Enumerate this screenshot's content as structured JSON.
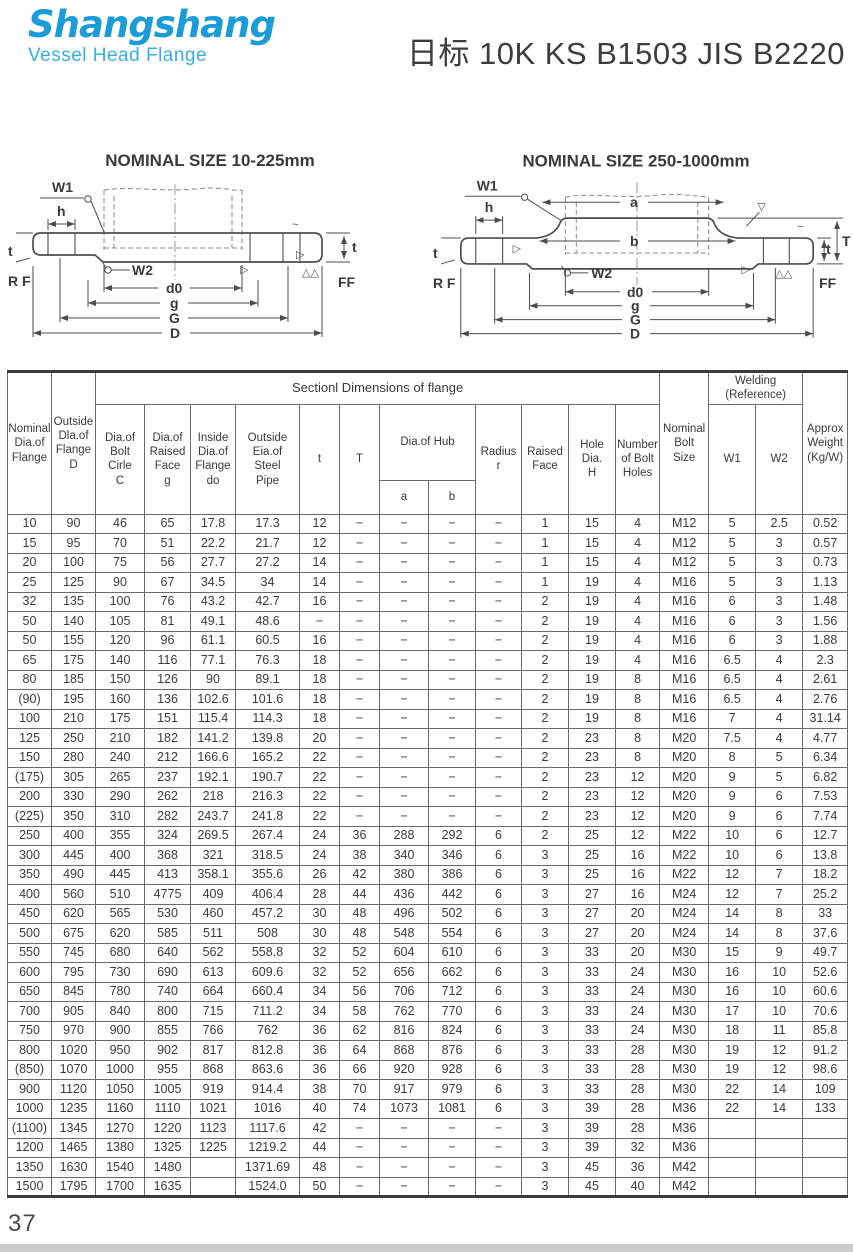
{
  "header": {
    "logo_title": "Shangshang",
    "logo_subtitle": "Vessel Head Flange",
    "page_title": "日标 10K KS B1503 JIS B2220"
  },
  "diagrams": {
    "left": {
      "title": "NOMINAL SIZE 10-225mm",
      "labels": {
        "w1": "W1",
        "h": "h",
        "t_left": "t",
        "rf": "R F",
        "w2": "W2",
        "d0": "d0",
        "g": "g",
        "G": "G",
        "D": "D",
        "ff": "FF",
        "t_right": "t",
        "tilde": "~",
        "tri_right": "▷",
        "tri_double": "△△"
      }
    },
    "right": {
      "title": "NOMINAL SIZE 250-1000mm",
      "labels": {
        "w1": "W1",
        "h": "h",
        "t_left": "t",
        "rf": "R F",
        "w2": "W2",
        "a": "a",
        "b": "b",
        "d0": "d0",
        "g": "g",
        "G": "G",
        "D": "D",
        "ff": "FF",
        "t_right": "t",
        "T": "T",
        "tilde": "~",
        "tri_left": "▷",
        "tri_right": "▷",
        "tri_down": "▽",
        "tri_double": "△△"
      }
    }
  },
  "table": {
    "headers": {
      "nominal_dia": "Nominal\nDia.of\nFlange",
      "outside_dia": "Outside\nDla.of\nFlange\nD",
      "section": "Sectionl Dimensions of flange",
      "bolt_circle": "Dia.of\nBolt\nCirle\nC",
      "raised_face_g": "Dia.of\nRaised\nFace\ng",
      "inside_dia": "Inside\nDia.of\nFlange\ndo",
      "steel_pipe": "Outside\nEia.of\nSteel\nPipe",
      "t": "t",
      "T": "T",
      "hub": "Dia.of Hub",
      "a": "a",
      "b": "b",
      "radius": "Radius\nr",
      "raised_face": "Raised\nFace",
      "hole_dia": "Hole\nDia.\nH",
      "num_holes": "Number\nof Bolt\nHoles",
      "bolt_size": "Nominal\nBolt\nSize",
      "welding": "Welding\n(Reference)",
      "w1": "W1",
      "w2": "W2",
      "weight": "Approx\nWeight\n(Kg/W)"
    },
    "rows": [
      [
        "10",
        "90",
        "46",
        "65",
        "17.8",
        "17.3",
        "12",
        "−",
        "−",
        "−",
        "−",
        "1",
        "15",
        "4",
        "M12",
        "5",
        "2.5",
        "0.52"
      ],
      [
        "15",
        "95",
        "70",
        "51",
        "22.2",
        "21.7",
        "12",
        "−",
        "−",
        "−",
        "−",
        "1",
        "15",
        "4",
        "M12",
        "5",
        "3",
        "0.57"
      ],
      [
        "20",
        "100",
        "75",
        "56",
        "27.7",
        "27.2",
        "14",
        "−",
        "−",
        "−",
        "−",
        "1",
        "15",
        "4",
        "M12",
        "5",
        "3",
        "0.73"
      ],
      [
        "25",
        "125",
        "90",
        "67",
        "34.5",
        "34",
        "14",
        "−",
        "−",
        "−",
        "−",
        "1",
        "19",
        "4",
        "M16",
        "5",
        "3",
        "1.13"
      ],
      [
        "32",
        "135",
        "100",
        "76",
        "43.2",
        "42.7",
        "16",
        "−",
        "−",
        "−",
        "−",
        "2",
        "19",
        "4",
        "M16",
        "6",
        "3",
        "1.48"
      ],
      [
        "50",
        "140",
        "105",
        "81",
        "49.1",
        "48.6",
        "−",
        "−",
        "−",
        "−",
        "−",
        "2",
        "19",
        "4",
        "M16",
        "6",
        "3",
        "1.56"
      ],
      [
        "50",
        "155",
        "120",
        "96",
        "61.1",
        "60.5",
        "16",
        "−",
        "−",
        "−",
        "−",
        "2",
        "19",
        "4",
        "M16",
        "6",
        "3",
        "1.88"
      ],
      [
        "65",
        "175",
        "140",
        "116",
        "77.1",
        "76.3",
        "18",
        "−",
        "−",
        "−",
        "−",
        "2",
        "19",
        "4",
        "M16",
        "6.5",
        "4",
        "2.3"
      ],
      [
        "80",
        "185",
        "150",
        "126",
        "90",
        "89.1",
        "18",
        "−",
        "−",
        "−",
        "−",
        "2",
        "19",
        "8",
        "M16",
        "6.5",
        "4",
        "2.61"
      ],
      [
        "(90)",
        "195",
        "160",
        "136",
        "102.6",
        "101.6",
        "18",
        "−",
        "−",
        "−",
        "−",
        "2",
        "19",
        "8",
        "M16",
        "6.5",
        "4",
        "2.76"
      ],
      [
        "100",
        "210",
        "175",
        "151",
        "115.4",
        "114.3",
        "18",
        "−",
        "−",
        "−",
        "−",
        "2",
        "19",
        "8",
        "M16",
        "7",
        "4",
        "31.14"
      ],
      [
        "125",
        "250",
        "210",
        "182",
        "141.2",
        "139.8",
        "20",
        "−",
        "−",
        "−",
        "−",
        "2",
        "23",
        "8",
        "M20",
        "7.5",
        "4",
        "4.77"
      ],
      [
        "150",
        "280",
        "240",
        "212",
        "166.6",
        "165.2",
        "22",
        "−",
        "−",
        "−",
        "−",
        "2",
        "23",
        "8",
        "M20",
        "8",
        "5",
        "6.34"
      ],
      [
        "(175)",
        "305",
        "265",
        "237",
        "192.1",
        "190.7",
        "22",
        "−",
        "−",
        "−",
        "−",
        "2",
        "23",
        "12",
        "M20",
        "9",
        "5",
        "6.82"
      ],
      [
        "200",
        "330",
        "290",
        "262",
        "218",
        "216.3",
        "22",
        "−",
        "−",
        "−",
        "−",
        "2",
        "23",
        "12",
        "M20",
        "9",
        "6",
        "7.53"
      ],
      [
        "(225)",
        "350",
        "310",
        "282",
        "243.7",
        "241.8",
        "22",
        "−",
        "−",
        "−",
        "−",
        "2",
        "23",
        "12",
        "M20",
        "9",
        "6",
        "7.74"
      ],
      [
        "250",
        "400",
        "355",
        "324",
        "269.5",
        "267.4",
        "24",
        "36",
        "288",
        "292",
        "6",
        "2",
        "25",
        "12",
        "M22",
        "10",
        "6",
        "12.7"
      ],
      [
        "300",
        "445",
        "400",
        "368",
        "321",
        "318.5",
        "24",
        "38",
        "340",
        "346",
        "6",
        "3",
        "25",
        "16",
        "M22",
        "10",
        "6",
        "13.8"
      ],
      [
        "350",
        "490",
        "445",
        "413",
        "358.1",
        "355.6",
        "26",
        "42",
        "380",
        "386",
        "6",
        "3",
        "25",
        "16",
        "M22",
        "12",
        "7",
        "18.2"
      ],
      [
        "400",
        "560",
        "510",
        "4775",
        "409",
        "406.4",
        "28",
        "44",
        "436",
        "442",
        "6",
        "3",
        "27",
        "16",
        "M24",
        "12",
        "7",
        "25.2"
      ],
      [
        "450",
        "620",
        "565",
        "530",
        "460",
        "457.2",
        "30",
        "48",
        "496",
        "502",
        "6",
        "3",
        "27",
        "20",
        "M24",
        "14",
        "8",
        "33"
      ],
      [
        "500",
        "675",
        "620",
        "585",
        "511",
        "508",
        "30",
        "48",
        "548",
        "554",
        "6",
        "3",
        "27",
        "20",
        "M24",
        "14",
        "8",
        "37.6"
      ],
      [
        "550",
        "745",
        "680",
        "640",
        "562",
        "558.8",
        "32",
        "52",
        "604",
        "610",
        "6",
        "3",
        "33",
        "20",
        "M30",
        "15",
        "9",
        "49.7"
      ],
      [
        "600",
        "795",
        "730",
        "690",
        "613",
        "609.6",
        "32",
        "52",
        "656",
        "662",
        "6",
        "3",
        "33",
        "24",
        "M30",
        "16",
        "10",
        "52.6"
      ],
      [
        "650",
        "845",
        "780",
        "740",
        "664",
        "660.4",
        "34",
        "56",
        "706",
        "712",
        "6",
        "3",
        "33",
        "24",
        "M30",
        "16",
        "10",
        "60.6"
      ],
      [
        "700",
        "905",
        "840",
        "800",
        "715",
        "711.2",
        "34",
        "58",
        "762",
        "770",
        "6",
        "3",
        "33",
        "24",
        "M30",
        "17",
        "10",
        "70.6"
      ],
      [
        "750",
        "970",
        "900",
        "855",
        "766",
        "762",
        "36",
        "62",
        "816",
        "824",
        "6",
        "3",
        "33",
        "24",
        "M30",
        "18",
        "11",
        "85.8"
      ],
      [
        "800",
        "1020",
        "950",
        "902",
        "817",
        "812.8",
        "36",
        "64",
        "868",
        "876",
        "6",
        "3",
        "33",
        "28",
        "M30",
        "19",
        "12",
        "91.2"
      ],
      [
        "(850)",
        "1070",
        "1000",
        "955",
        "868",
        "863.6",
        "36",
        "66",
        "920",
        "928",
        "6",
        "3",
        "33",
        "28",
        "M30",
        "19",
        "12",
        "98.6"
      ],
      [
        "900",
        "1120",
        "1050",
        "1005",
        "919",
        "914.4",
        "38",
        "70",
        "917",
        "979",
        "6",
        "3",
        "33",
        "28",
        "M30",
        "22",
        "14",
        "109"
      ],
      [
        "1000",
        "1235",
        "1160",
        "1110",
        "1021",
        "1016",
        "40",
        "74",
        "1073",
        "1081",
        "6",
        "3",
        "39",
        "28",
        "M36",
        "22",
        "14",
        "133"
      ],
      [
        "(1100)",
        "1345",
        "1270",
        "1220",
        "1123",
        "1117.6",
        "42",
        "−",
        "−",
        "−",
        "−",
        "3",
        "39",
        "28",
        "M36",
        "",
        "",
        ""
      ],
      [
        "1200",
        "1465",
        "1380",
        "1325",
        "1225",
        "1219.2",
        "44",
        "−",
        "−",
        "−",
        "−",
        "3",
        "39",
        "32",
        "M36",
        "",
        "",
        ""
      ],
      [
        "1350",
        "1630",
        "1540",
        "1480",
        "",
        "1371.69",
        "48",
        "−",
        "−",
        "−",
        "−",
        "3",
        "45",
        "36",
        "M42",
        "",
        "",
        ""
      ],
      [
        "1500",
        "1795",
        "1700",
        "1635",
        "",
        "1524.0",
        "50",
        "−",
        "−",
        "−",
        "−",
        "3",
        "45",
        "40",
        "M42",
        "",
        "",
        ""
      ]
    ]
  },
  "footer": {
    "page_number": "37"
  }
}
